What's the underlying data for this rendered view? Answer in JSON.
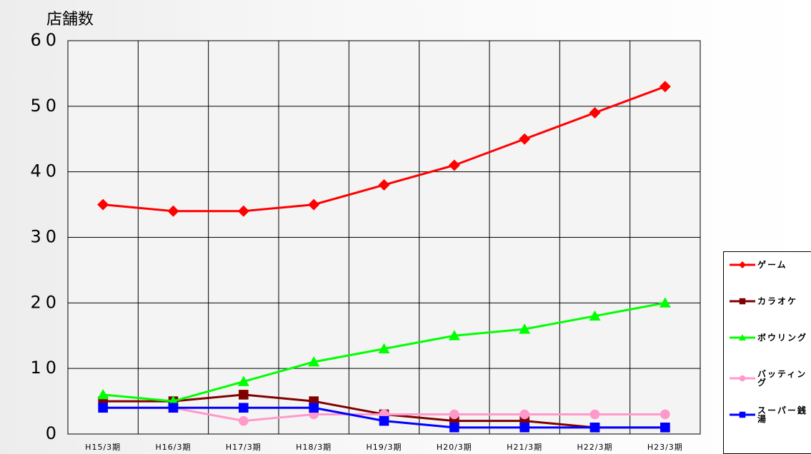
{
  "chart_data": {
    "type": "line",
    "y_label": "店舗数",
    "categories": [
      "H15/3期",
      "H16/3期",
      "H17/3期",
      "H18/3期",
      "H19/3期",
      "H20/3期",
      "H21/3期",
      "H22/3期",
      "H23/3期"
    ],
    "series": [
      {
        "name": "ゲーム",
        "color": "#ff0000",
        "marker": "diamond",
        "values": [
          35,
          34,
          34,
          35,
          38,
          41,
          45,
          49,
          53
        ]
      },
      {
        "name": "カラオケ",
        "color": "#800000",
        "marker": "square",
        "values": [
          5,
          5,
          6,
          5,
          3,
          2,
          2,
          1,
          1
        ]
      },
      {
        "name": "ボウリング",
        "color": "#00ff00",
        "marker": "triangle",
        "values": [
          6,
          5,
          8,
          11,
          13,
          15,
          16,
          18,
          20
        ]
      },
      {
        "name": "バッティング",
        "color": "#ff99cc",
        "marker": "circle",
        "values": [
          4,
          4,
          2,
          3,
          3,
          3,
          3,
          3,
          3
        ]
      },
      {
        "name": "スーパー銭湯",
        "color": "#0000ff",
        "marker": "square",
        "values": [
          4,
          4,
          4,
          4,
          2,
          1,
          1,
          1,
          1
        ]
      }
    ],
    "ylim": [
      0,
      60
    ],
    "yticks": [
      0,
      10,
      20,
      30,
      40,
      50,
      60
    ],
    "grid": true
  }
}
